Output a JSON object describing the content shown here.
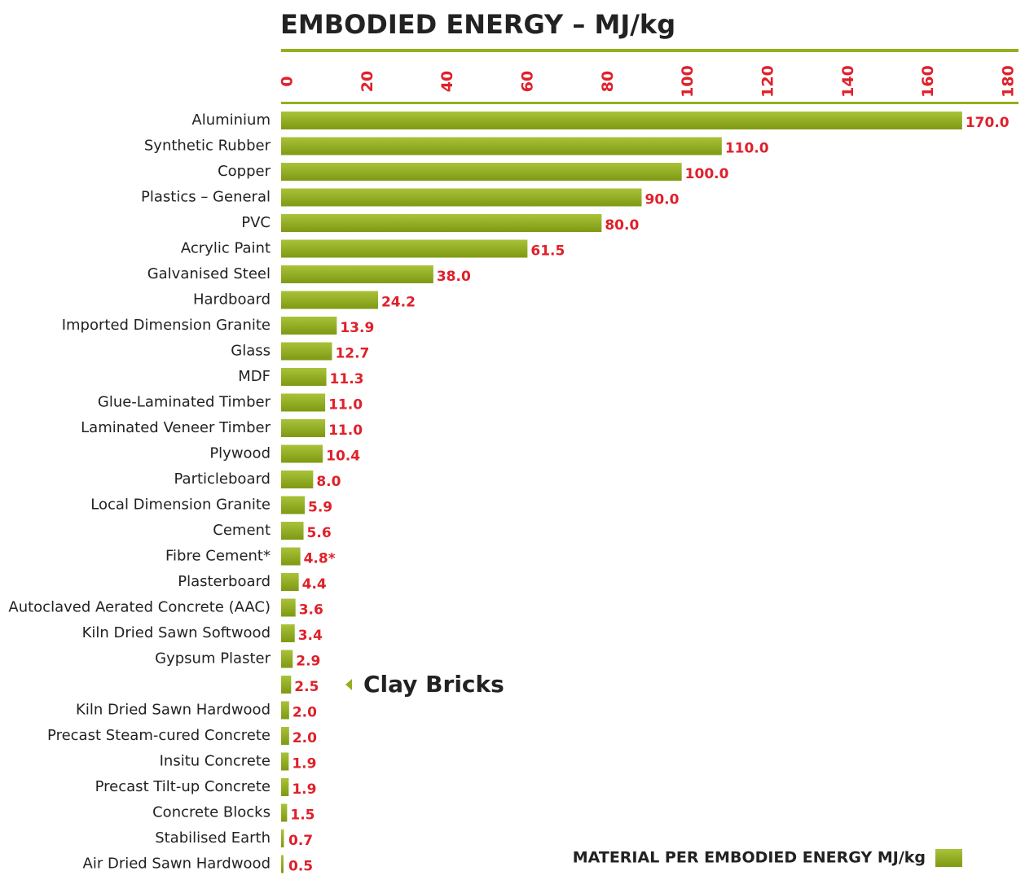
{
  "chart_data": {
    "type": "bar",
    "orientation": "horizontal",
    "title": "EMBODIED ENERGY – MJ/kg",
    "categories": [
      "Aluminium",
      "Synthetic Rubber",
      "Copper",
      "Plastics – General",
      "PVC",
      "Acrylic Paint",
      "Galvanised Steel",
      "Hardboard",
      "Imported Dimension Granite",
      "Glass",
      "MDF",
      "Glue-Laminated Timber",
      "Laminated Veneer Timber",
      "Plywood",
      "Particleboard",
      "Local Dimension Granite",
      "Cement",
      "Fibre Cement*",
      "Plasterboard",
      "Autoclaved Aerated Concrete (AAC)",
      "Kiln Dried Sawn Softwood",
      "Gypsum Plaster",
      null,
      "Kiln Dried Sawn Hardwood",
      "Precast Steam-cured Concrete",
      "Insitu Concrete",
      "Precast Tilt-up Concrete",
      "Concrete Blocks",
      "Stabilised Earth",
      "Air Dried Sawn Hardwood"
    ],
    "series": [
      {
        "name": "MATERIAL PER EMBODIED ENERGY MJ/kg",
        "color": "#93b01f",
        "values": [
          170,
          110,
          100,
          90,
          80,
          61.5,
          38,
          24.2,
          13.9,
          12.7,
          11.3,
          11,
          11,
          10.4,
          8,
          5.9,
          5.6,
          4.8,
          4.4,
          3.6,
          3.4,
          2.9,
          2.5,
          2,
          2,
          1.9,
          1.9,
          1.5,
          0.7,
          0.5
        ],
        "value_labels": [
          "170.0",
          "110.0",
          "100.0",
          "90.0",
          "80.0",
          "61.5",
          "38.0",
          "24.2",
          "13.9",
          "12.7",
          "11.3",
          "11.0",
          "11.0",
          "10.4",
          "8.0",
          "5.9",
          "5.6",
          "4.8*",
          "4.4",
          "3.6",
          "3.4",
          "2.9",
          "2.5",
          "2.0",
          "2.0",
          "1.9",
          "1.9",
          "1.5",
          "0.7",
          "0.5"
        ]
      }
    ],
    "annotations": [
      {
        "text": "Clay Bricks",
        "index": 22
      }
    ],
    "xlim": [
      0,
      180
    ],
    "xticks": [
      0,
      20,
      40,
      60,
      80,
      100,
      120,
      140,
      160,
      180
    ],
    "legend": "lower right"
  }
}
